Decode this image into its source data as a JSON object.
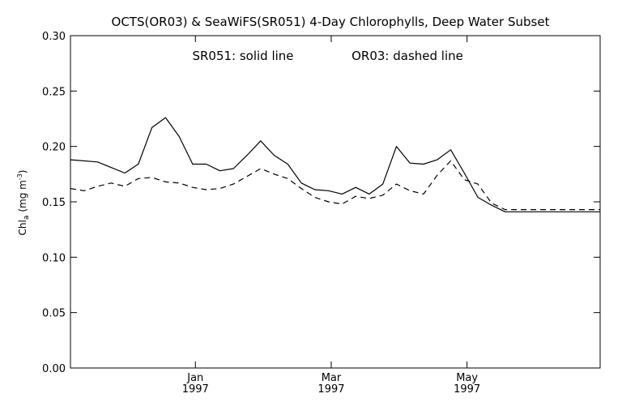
{
  "chart_data": {
    "type": "line",
    "title": "OCTS(OR03) & SeaWiFS(SR051) 4-Day Chlorophylls, Deep Water Subset",
    "annotation_solid": "SR051: solid line",
    "annotation_dashed": "OR03: dashed line",
    "ylabel_main": "Chl",
    "ylabel_sub": "a",
    "ylabel_unit": "(mg m",
    "ylabel_exp": "-3",
    "ylabel_close": ")",
    "ylim": [
      0.0,
      0.3
    ],
    "yticks": [
      "0.00",
      "0.05",
      "0.10",
      "0.15",
      "0.20",
      "0.25",
      "0.30"
    ],
    "xlim": [
      0,
      39
    ],
    "xticks": [
      {
        "month": "Jan",
        "year": "1997",
        "x": 9.2
      },
      {
        "month": "Mar",
        "year": "1997",
        "x": 19.2
      },
      {
        "month": "May",
        "year": "1997",
        "x": 29.2
      }
    ],
    "grid": false,
    "series": [
      {
        "name": "SR051",
        "style": "solid",
        "x": [
          0,
          2,
          4,
          5,
          6,
          7,
          8,
          9,
          10,
          11,
          12,
          13,
          14,
          15,
          16,
          17,
          18,
          19,
          20,
          21,
          22,
          23,
          24,
          25,
          26,
          27,
          28,
          29,
          30,
          31,
          32,
          33,
          34,
          35,
          36,
          37,
          38,
          39
        ],
        "values": [
          0.188,
          0.186,
          0.176,
          0.184,
          0.217,
          0.226,
          0.209,
          0.184,
          0.184,
          0.178,
          0.18,
          0.192,
          0.205,
          0.192,
          0.184,
          0.167,
          0.161,
          0.16,
          0.157,
          0.163,
          0.157,
          0.166,
          0.2,
          0.185,
          0.184,
          0.188,
          0.197,
          0.176,
          0.154,
          0.147,
          0.141,
          0.141,
          0.141,
          0.141,
          0.141,
          0.141,
          0.141,
          0.141
        ]
      },
      {
        "name": "OR03",
        "style": "dashed",
        "x": [
          0,
          1,
          2,
          3,
          4,
          5,
          6,
          7,
          8,
          9,
          10,
          11,
          12,
          13,
          14,
          15,
          16,
          17,
          18,
          19,
          20,
          21,
          22,
          23,
          24,
          25,
          26,
          27,
          28,
          29,
          30,
          31,
          32,
          33,
          34,
          35,
          36,
          37,
          38,
          39
        ],
        "values": [
          0.162,
          0.16,
          0.164,
          0.167,
          0.164,
          0.171,
          0.172,
          0.168,
          0.167,
          0.163,
          0.161,
          0.162,
          0.166,
          0.173,
          0.18,
          0.175,
          0.171,
          0.162,
          0.154,
          0.15,
          0.148,
          0.155,
          0.153,
          0.156,
          0.166,
          0.16,
          0.157,
          0.174,
          0.187,
          0.17,
          0.166,
          0.149,
          0.143,
          0.143,
          0.143,
          0.143,
          0.143,
          0.143,
          0.143,
          0.143
        ]
      }
    ]
  }
}
